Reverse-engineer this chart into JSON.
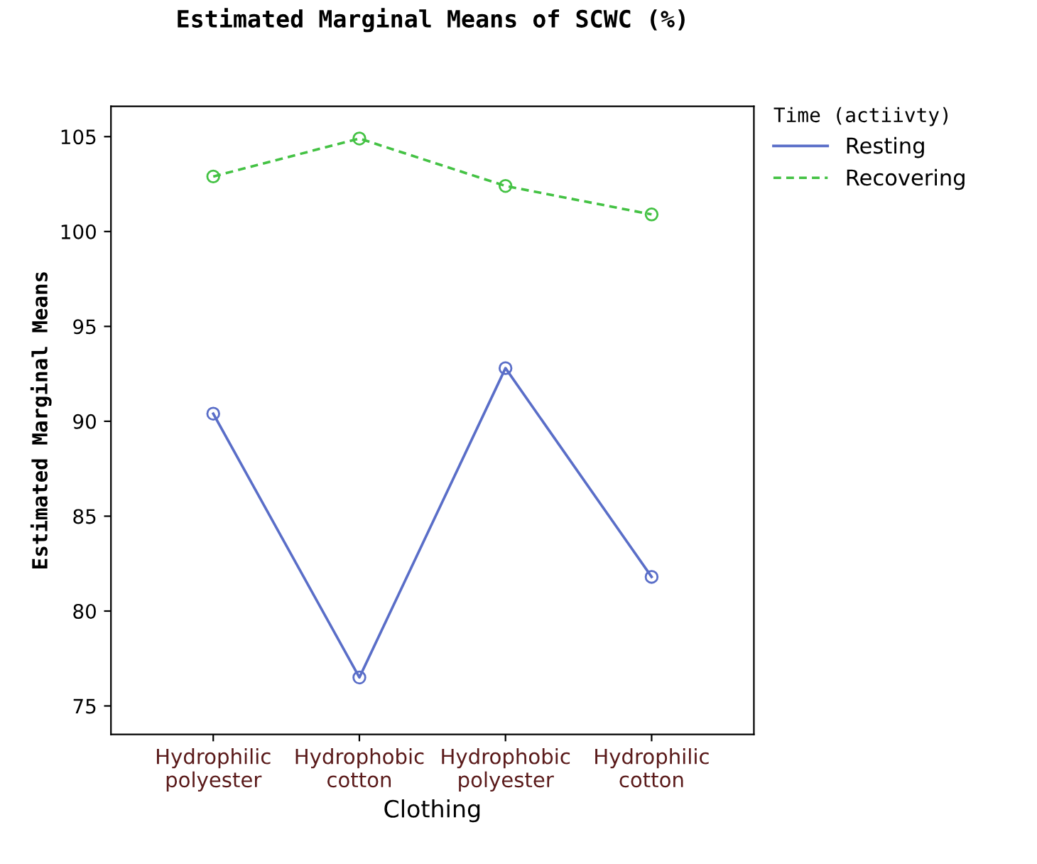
{
  "chart_data": {
    "type": "line",
    "title": "Estimated Marginal Means of SCWC (%)",
    "xlabel": "Clothing",
    "ylabel": "Estimated Marginal Means",
    "legend_title": "Time (actiivty)",
    "categories": [
      "Hydrophilic\npolyester",
      "Hydrophobic\ncotton",
      "Hydrophobic\npolyester",
      "Hydrophilic\ncotton"
    ],
    "series": [
      {
        "name": "Resting",
        "color": "#5a6ec8",
        "values": [
          90.4,
          76.5,
          92.8,
          81.8
        ],
        "line_style": "solid"
      },
      {
        "name": "Recovering",
        "color": "#44c244",
        "values": [
          102.9,
          104.9,
          102.4,
          100.9
        ],
        "line_style": "dashed"
      }
    ],
    "ylim": [
      73.5,
      106.6
    ],
    "yticks": [
      75,
      80,
      85,
      90,
      95,
      100,
      105
    ],
    "marker": "circle",
    "legend": "top right",
    "grid": false
  }
}
